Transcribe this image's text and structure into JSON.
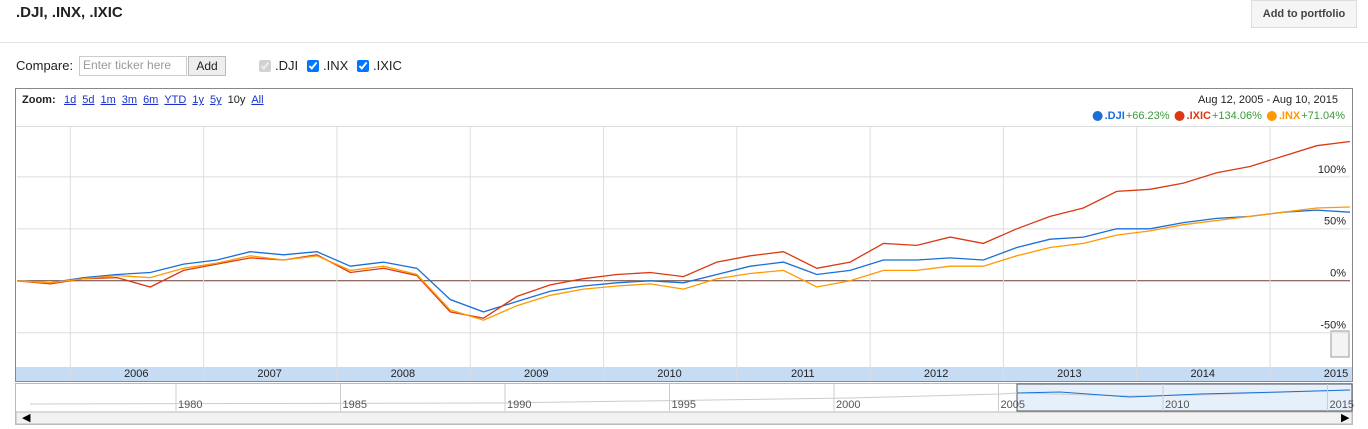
{
  "header": {
    "title": ".DJI, .INX, .IXIC",
    "button": "Add to portfolio"
  },
  "compare": {
    "label": "Compare:",
    "placeholder": "Enter ticker here",
    "button": "Add",
    "checks": [
      ".DJI",
      ".INX",
      ".IXIC"
    ]
  },
  "zoom": {
    "label": "Zoom:",
    "options": [
      "1d",
      "5d",
      "1m",
      "3m",
      "6m",
      "YTD",
      "1y",
      "5y",
      "10y",
      "All"
    ],
    "selected": "10y"
  },
  "date_range": "Aug 12, 2005  -  Aug 10, 2015",
  "chart_data": {
    "type": "line",
    "x": [
      2005.6,
      2005.85,
      2006.1,
      2006.35,
      2006.6,
      2006.85,
      2007.1,
      2007.35,
      2007.6,
      2007.85,
      2008.1,
      2008.35,
      2008.6,
      2008.85,
      2009.1,
      2009.35,
      2009.6,
      2009.85,
      2010.1,
      2010.35,
      2010.6,
      2010.85,
      2011.1,
      2011.35,
      2011.6,
      2011.85,
      2012.1,
      2012.35,
      2012.6,
      2012.85,
      2013.1,
      2013.35,
      2013.6,
      2013.85,
      2014.1,
      2014.35,
      2014.6,
      2014.85,
      2015.1,
      2015.35,
      2015.6
    ],
    "series": [
      {
        "name": ".DJI",
        "change": "+66.23%",
        "color": "#1a6ed8",
        "values": [
          0,
          -2,
          3,
          6,
          8,
          16,
          20,
          28,
          25,
          28,
          14,
          18,
          12,
          -18,
          -30,
          -20,
          -10,
          -5,
          -2,
          0,
          -2,
          6,
          14,
          18,
          6,
          10,
          20,
          20,
          22,
          20,
          32,
          40,
          42,
          50,
          50,
          56,
          60,
          62,
          66,
          68,
          66
        ]
      },
      {
        "name": ".IXIC",
        "change": "+134.06%",
        "color": "#dc3912",
        "values": [
          0,
          -3,
          2,
          3,
          -6,
          10,
          16,
          22,
          20,
          25,
          8,
          12,
          5,
          -30,
          -36,
          -15,
          -4,
          2,
          6,
          8,
          4,
          18,
          24,
          28,
          12,
          18,
          36,
          34,
          42,
          36,
          50,
          62,
          70,
          86,
          88,
          94,
          104,
          110,
          120,
          130,
          134
        ]
      },
      {
        "name": ".INX",
        "change": "+71.04%",
        "color": "#ff9900",
        "values": [
          0,
          -2,
          2,
          5,
          3,
          12,
          17,
          24,
          20,
          24,
          10,
          14,
          6,
          -28,
          -38,
          -24,
          -14,
          -8,
          -5,
          -3,
          -8,
          2,
          7,
          10,
          -6,
          0,
          10,
          10,
          14,
          14,
          24,
          32,
          36,
          44,
          48,
          54,
          58,
          62,
          66,
          70,
          71
        ]
      }
    ],
    "xlim": [
      2005.6,
      2015.6
    ],
    "xticks": [
      2006,
      2007,
      2008,
      2009,
      2010,
      2011,
      2012,
      2013,
      2014,
      2015
    ],
    "ylim": [
      -83,
      148
    ],
    "yticks": [
      {
        "value": -50,
        "label": "-50%"
      },
      {
        "value": 0,
        "label": "0%"
      },
      {
        "value": 50,
        "label": "50%"
      },
      {
        "value": 100,
        "label": "100%"
      }
    ],
    "grid": true,
    "change_color": "#3a9a3a"
  },
  "navigator": {
    "years": [
      "1980",
      "1985",
      "1990",
      "1995",
      "2000",
      "2005",
      "2010",
      "2015"
    ]
  }
}
